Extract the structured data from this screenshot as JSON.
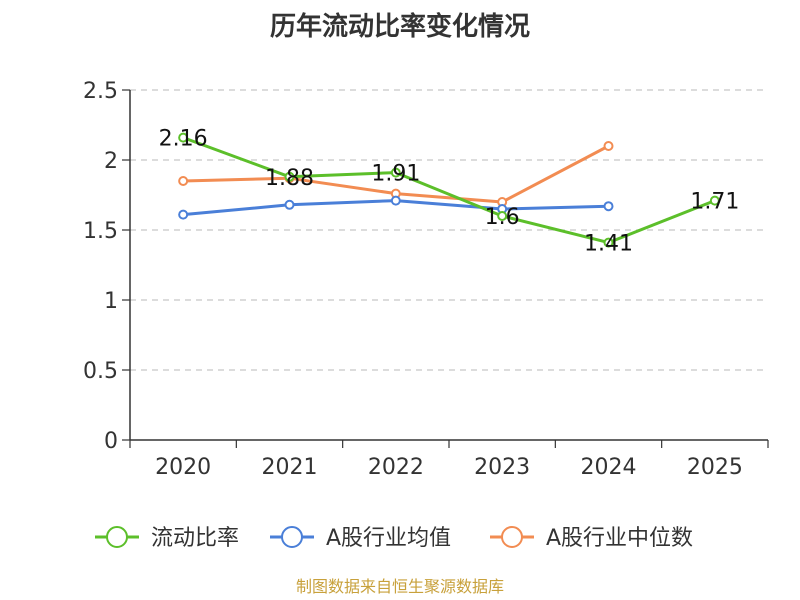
{
  "chart_data": {
    "type": "line",
    "title": "历年流动比率变化情况",
    "categories": [
      "2020",
      "2021",
      "2022",
      "2023",
      "2024",
      "2025"
    ],
    "ylim": [
      0,
      2.5
    ],
    "yticks": [
      "0",
      "0.5",
      "1",
      "1.5",
      "2",
      "2.5"
    ],
    "grid": true,
    "legend_position": "bottom",
    "series": [
      {
        "name": "流动比率",
        "color": "#5cbf2a",
        "values": [
          2.16,
          1.88,
          1.91,
          1.6,
          1.41,
          1.71
        ],
        "labels": [
          "2.16",
          "1.88",
          "1.91",
          "1.6",
          "1.41",
          "1.71"
        ]
      },
      {
        "name": "A股行业均值",
        "color": "#4a7fd8",
        "values": [
          1.61,
          1.68,
          1.71,
          1.65,
          1.67,
          null
        ]
      },
      {
        "name": "A股行业中位数",
        "color": "#f28c52",
        "values": [
          1.85,
          1.87,
          1.76,
          1.7,
          2.1,
          null
        ]
      }
    ],
    "source": "制图数据来自恒生聚源数据库"
  }
}
